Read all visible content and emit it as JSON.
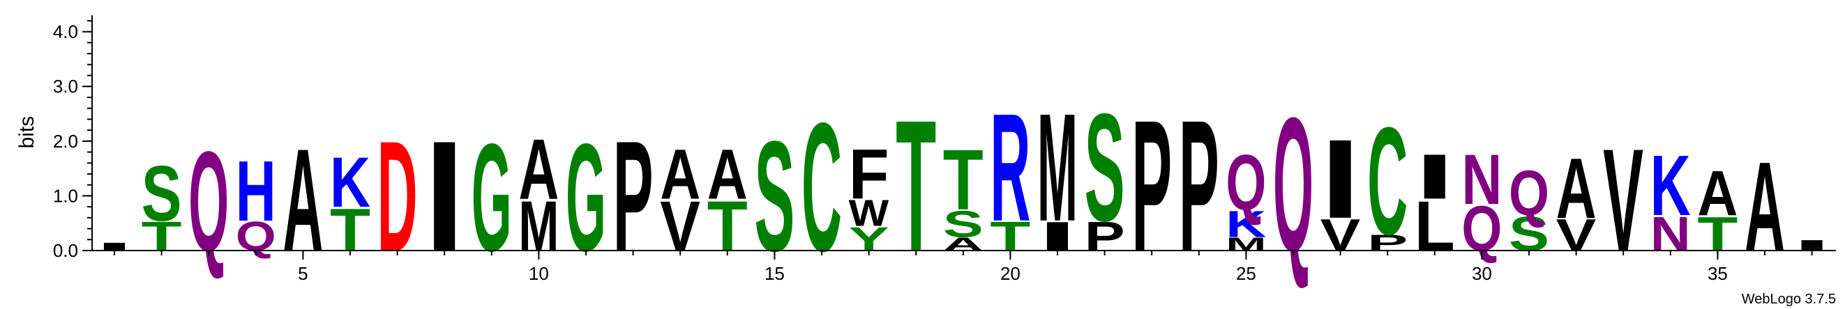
{
  "chart_data": {
    "type": "sequence-logo",
    "ylabel": "bits",
    "ylim": [
      0,
      4.3
    ],
    "yticks": [
      "0.0",
      "1.0",
      "2.0",
      "3.0",
      "4.0"
    ],
    "yminor_step": 0.2,
    "xticks": [
      "5",
      "10",
      "15",
      "20",
      "25",
      "30",
      "35"
    ],
    "xtick_positions": [
      5,
      10,
      15,
      20,
      25,
      30,
      35
    ],
    "positions": 37,
    "footer": "WebLogo 3.7.5",
    "colors": {
      "A": "#000000",
      "V": "#000000",
      "L": "#000000",
      "I": "#000000",
      "P": "#000000",
      "F": "#000000",
      "W": "#000000",
      "M": "#000000",
      "G": "#008000",
      "S": "#008000",
      "T": "#008000",
      "Y": "#008000",
      "C": "#008000",
      "Q": "#800080",
      "N": "#800080",
      "K": "#0000ff",
      "R": "#0000ff",
      "H": "#0000ff",
      "D": "#ff0000",
      "E": "#ff0000"
    },
    "columns": [
      {
        "pos": 1,
        "stack": [
          {
            "aa": "I",
            "h": 0.15
          }
        ]
      },
      {
        "pos": 2,
        "stack": [
          {
            "aa": "T",
            "h": 0.55
          },
          {
            "aa": "S",
            "h": 1.05
          }
        ]
      },
      {
        "pos": 3,
        "stack": [
          {
            "aa": "Q",
            "h": 1.9
          }
        ]
      },
      {
        "pos": 4,
        "stack": [
          {
            "aa": "Q",
            "h": 0.55
          },
          {
            "aa": "H",
            "h": 1.15
          }
        ]
      },
      {
        "pos": 5,
        "stack": [
          {
            "aa": "A",
            "h": 1.95
          }
        ]
      },
      {
        "pos": 6,
        "stack": [
          {
            "aa": "T",
            "h": 0.8
          },
          {
            "aa": "K",
            "h": 0.95
          }
        ]
      },
      {
        "pos": 7,
        "stack": [
          {
            "aa": "D",
            "h": 2.1
          }
        ]
      },
      {
        "pos": 8,
        "stack": [
          {
            "aa": "I",
            "h": 2.1
          }
        ]
      },
      {
        "pos": 9,
        "stack": [
          {
            "aa": "G",
            "h": 2.05
          }
        ]
      },
      {
        "pos": 10,
        "stack": [
          {
            "aa": "M",
            "h": 0.95
          },
          {
            "aa": "A",
            "h": 1.15
          }
        ]
      },
      {
        "pos": 11,
        "stack": [
          {
            "aa": "G",
            "h": 2.05
          }
        ]
      },
      {
        "pos": 12,
        "stack": [
          {
            "aa": "P",
            "h": 2.1
          }
        ]
      },
      {
        "pos": 13,
        "stack": [
          {
            "aa": "V",
            "h": 0.95
          },
          {
            "aa": "A",
            "h": 0.95
          }
        ]
      },
      {
        "pos": 14,
        "stack": [
          {
            "aa": "T",
            "h": 0.95
          },
          {
            "aa": "A",
            "h": 0.95
          }
        ]
      },
      {
        "pos": 15,
        "stack": [
          {
            "aa": "S",
            "h": 2.1
          }
        ]
      },
      {
        "pos": 16,
        "stack": [
          {
            "aa": "C",
            "h": 2.45
          }
        ]
      },
      {
        "pos": 17,
        "stack": [
          {
            "aa": "Y",
            "h": 0.45
          },
          {
            "aa": "W",
            "h": 0.5
          },
          {
            "aa": "F",
            "h": 0.95
          }
        ]
      },
      {
        "pos": 18,
        "stack": [
          {
            "aa": "T",
            "h": 2.5
          }
        ]
      },
      {
        "pos": 19,
        "stack": [
          {
            "aa": "A",
            "h": 0.25
          },
          {
            "aa": "S",
            "h": 0.5
          },
          {
            "aa": "T",
            "h": 1.15
          }
        ]
      },
      {
        "pos": 20,
        "stack": [
          {
            "aa": "T",
            "h": 0.55
          },
          {
            "aa": "R",
            "h": 2.05
          }
        ]
      },
      {
        "pos": 21,
        "stack": [
          {
            "aa": "I",
            "h": 0.55
          },
          {
            "aa": "M",
            "h": 2.05
          }
        ]
      },
      {
        "pos": 22,
        "stack": [
          {
            "aa": "P",
            "h": 0.55
          },
          {
            "aa": "S",
            "h": 2.05
          }
        ]
      },
      {
        "pos": 23,
        "stack": [
          {
            "aa": "P",
            "h": 2.5
          }
        ]
      },
      {
        "pos": 24,
        "stack": [
          {
            "aa": "P",
            "h": 2.5
          }
        ]
      },
      {
        "pos": 25,
        "stack": [
          {
            "aa": "M",
            "h": 0.25
          },
          {
            "aa": "K",
            "h": 0.5
          },
          {
            "aa": "Q",
            "h": 1.05
          }
        ]
      },
      {
        "pos": 26,
        "stack": [
          {
            "aa": "Q",
            "h": 2.55
          }
        ]
      },
      {
        "pos": 27,
        "stack": [
          {
            "aa": "V",
            "h": 0.6
          },
          {
            "aa": "I",
            "h": 1.5
          }
        ]
      },
      {
        "pos": 28,
        "stack": [
          {
            "aa": "P",
            "h": 0.3
          },
          {
            "aa": "C",
            "h": 2.05
          }
        ]
      },
      {
        "pos": 29,
        "stack": [
          {
            "aa": "L",
            "h": 0.95
          },
          {
            "aa": "I",
            "h": 0.85
          }
        ]
      },
      {
        "pos": 30,
        "stack": [
          {
            "aa": "Q",
            "h": 0.85
          },
          {
            "aa": "N",
            "h": 0.95
          }
        ]
      },
      {
        "pos": 31,
        "stack": [
          {
            "aa": "S",
            "h": 0.65
          },
          {
            "aa": "Q",
            "h": 0.85
          }
        ]
      },
      {
        "pos": 32,
        "stack": [
          {
            "aa": "V",
            "h": 0.6
          },
          {
            "aa": "A",
            "h": 1.15
          }
        ]
      },
      {
        "pos": 33,
        "stack": [
          {
            "aa": "V",
            "h": 1.95
          }
        ]
      },
      {
        "pos": 34,
        "stack": [
          {
            "aa": "N",
            "h": 0.65
          },
          {
            "aa": "K",
            "h": 1.15
          }
        ]
      },
      {
        "pos": 35,
        "stack": [
          {
            "aa": "T",
            "h": 0.65
          },
          {
            "aa": "A",
            "h": 0.85
          }
        ]
      },
      {
        "pos": 36,
        "stack": [
          {
            "aa": "A",
            "h": 1.7
          }
        ]
      },
      {
        "pos": 37,
        "stack": [
          {
            "aa": "I",
            "h": 0.2
          }
        ]
      }
    ]
  }
}
